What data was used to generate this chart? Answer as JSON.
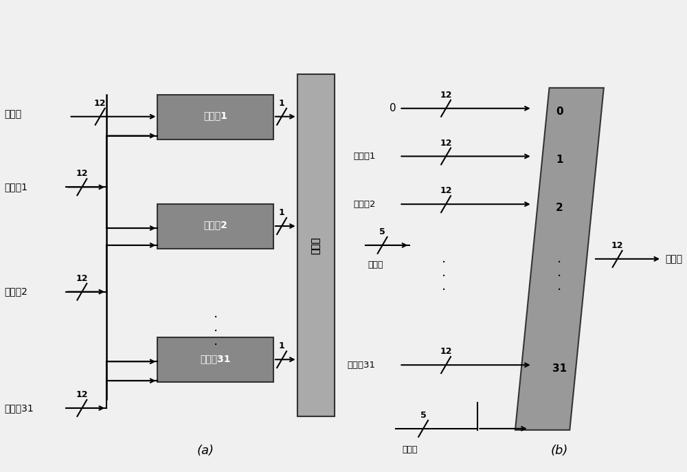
{
  "bg_color": "#e8e8e8",
  "box_color": "#888888",
  "box_edge": "#333333",
  "decoder_color": "#aaaaaa",
  "lut_color": "#999999",
  "text_color": "#000000",
  "fig_width": 10.0,
  "fig_height": 6.87,
  "label_a": "(a)",
  "label_b": "(b)",
  "comparators": [
    "比较器1",
    "比较器2",
    "比较格31"
  ],
  "input_labels_a": [
    "初始值",
    "定点倃1",
    "定点倃2",
    "定点值31"
  ],
  "decoder_label": "解码器",
  "lut_entries": [
    "0",
    "1",
    "2",
    "31"
  ],
  "input_labels_b_fixed": [
    "定点倃1",
    "定点倃2",
    "定点值31"
  ],
  "b_label_0": "0",
  "b_index_label": "索引值",
  "b_index_label2": "索引值",
  "b_output_label": "还原值"
}
